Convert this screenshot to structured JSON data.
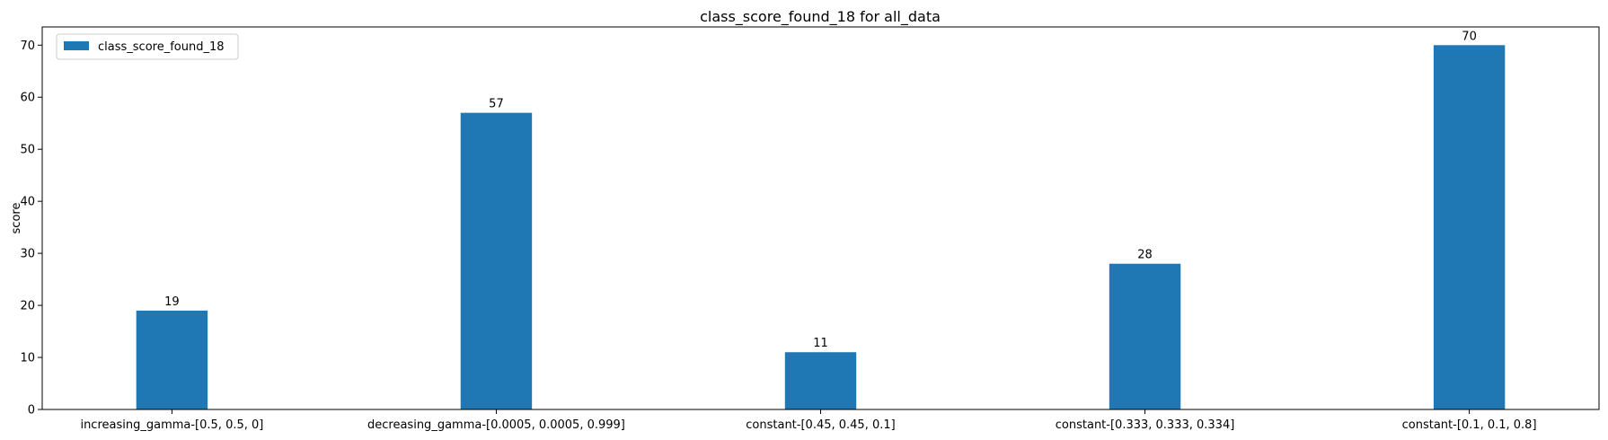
{
  "chart_data": {
    "type": "bar",
    "title": "class_score_found_18 for all_data",
    "xlabel": "",
    "ylabel": "score",
    "categories": [
      "increasing_gamma-[0.5, 0.5, 0]",
      "decreasing_gamma-[0.0005, 0.0005, 0.999]",
      "constant-[0.45, 0.45, 0.1]",
      "constant-[0.333, 0.333, 0.334]",
      "constant-[0.1, 0.1, 0.8]"
    ],
    "series": [
      {
        "name": "class_score_found_18",
        "values": [
          19,
          57,
          11,
          28,
          70
        ],
        "color": "#1f77b4"
      }
    ],
    "data_labels": [
      "19",
      "57",
      "11",
      "28",
      "70"
    ],
    "ylim": [
      0,
      73.5
    ],
    "yticks": [
      0,
      10,
      20,
      30,
      40,
      50,
      60,
      70
    ],
    "grid": false,
    "legend": "upper-left"
  }
}
